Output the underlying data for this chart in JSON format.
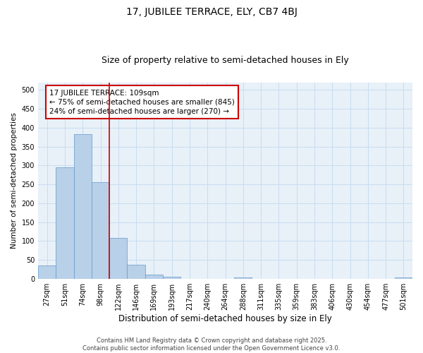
{
  "title": "17, JUBILEE TERRACE, ELY, CB7 4BJ",
  "subtitle": "Size of property relative to semi-detached houses in Ely",
  "xlabel": "Distribution of semi-detached houses by size in Ely",
  "ylabel": "Number of semi-detached properties",
  "bins": [
    "27sqm",
    "51sqm",
    "74sqm",
    "98sqm",
    "122sqm",
    "146sqm",
    "169sqm",
    "193sqm",
    "217sqm",
    "240sqm",
    "264sqm",
    "288sqm",
    "311sqm",
    "335sqm",
    "359sqm",
    "383sqm",
    "406sqm",
    "430sqm",
    "454sqm",
    "477sqm",
    "501sqm"
  ],
  "bar_values": [
    35,
    295,
    383,
    255,
    108,
    36,
    11,
    6,
    0,
    0,
    0,
    3,
    0,
    0,
    0,
    0,
    0,
    0,
    0,
    0,
    3
  ],
  "bar_color": "#b8d0e8",
  "bar_edge_color": "#6699cc",
  "grid_color": "#c8ddf0",
  "background_color": "#e8f0f8",
  "vline_color": "#cc0000",
  "annotation_text": "17 JUBILEE TERRACE: 109sqm\n← 75% of semi-detached houses are smaller (845)\n24% of semi-detached houses are larger (270) →",
  "annotation_box_color": "#ffffff",
  "annotation_box_edge": "#cc0000",
  "title_fontsize": 10,
  "subtitle_fontsize": 9,
  "xlabel_fontsize": 8.5,
  "ylabel_fontsize": 7.5,
  "tick_fontsize": 7,
  "annotation_fontsize": 7.5,
  "footer_text": "Contains HM Land Registry data © Crown copyright and database right 2025.\nContains public sector information licensed under the Open Government Licence v3.0.",
  "footer_fontsize": 6,
  "ylim": [
    0,
    520
  ],
  "yticks": [
    0,
    50,
    100,
    150,
    200,
    250,
    300,
    350,
    400,
    450,
    500
  ]
}
